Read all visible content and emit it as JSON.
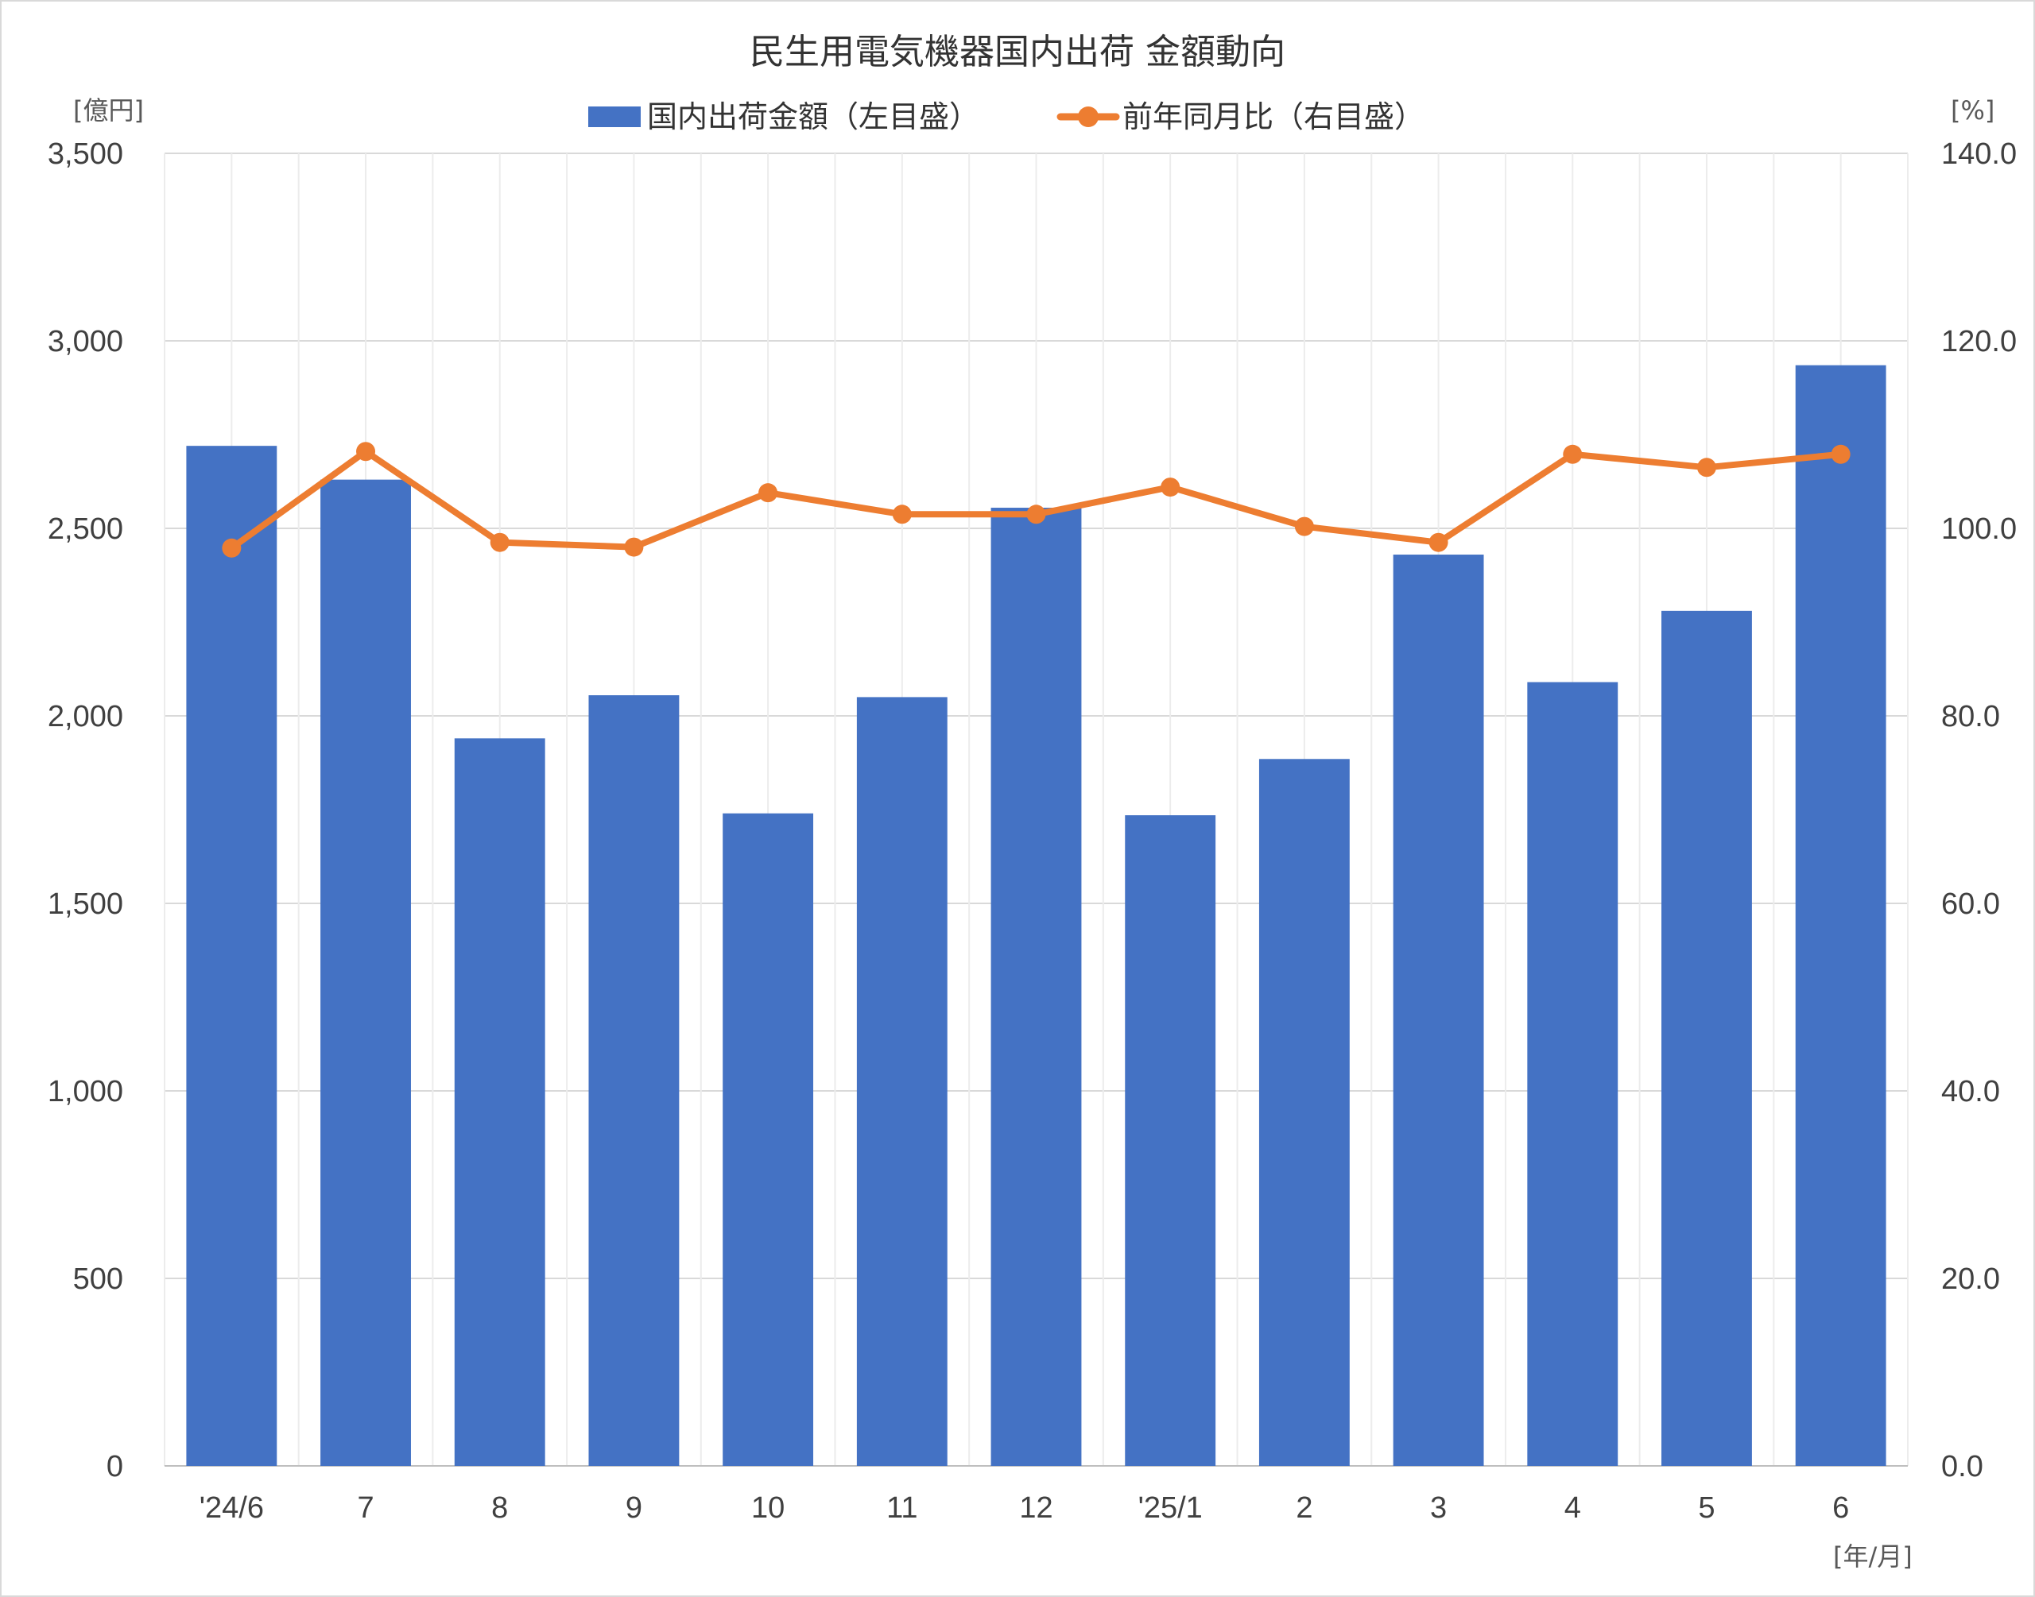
{
  "chart_data": {
    "type": "bar+line",
    "title": "民生用電気機器国内出荷 金額動向",
    "y_left_unit": "[億円]",
    "y_right_unit": "[%]",
    "x_unit": "[年/月]",
    "categories": [
      "'24/6",
      "7",
      "8",
      "9",
      "10",
      "11",
      "12",
      "'25/1",
      "2",
      "3",
      "4",
      "5",
      "6"
    ],
    "series": [
      {
        "name": "国内出荷金額（左目盛）",
        "type": "bar",
        "axis": "left",
        "color": "#4472c4",
        "values": [
          2720,
          2630,
          1940,
          2055,
          1740,
          2050,
          2555,
          1735,
          1885,
          2430,
          2090,
          2280,
          2935
        ]
      },
      {
        "name": "前年同月比（右目盛）",
        "type": "line",
        "axis": "right",
        "color": "#ed7d31",
        "values": [
          97.9,
          108.2,
          98.5,
          98.0,
          103.8,
          101.5,
          101.5,
          104.4,
          100.2,
          98.5,
          107.9,
          106.5,
          107.9
        ]
      }
    ],
    "y_left_ticks": [
      "0",
      "500",
      "1,000",
      "1,500",
      "2,000",
      "2,500",
      "3,000",
      "3,500"
    ],
    "y_right_ticks": [
      "0.0",
      "20.0",
      "40.0",
      "60.0",
      "80.0",
      "100.0",
      "120.0",
      "140.0"
    ],
    "y_left_range": [
      0,
      3500
    ],
    "y_right_range": [
      0,
      140
    ],
    "grid": "both",
    "legend_position": "top"
  }
}
